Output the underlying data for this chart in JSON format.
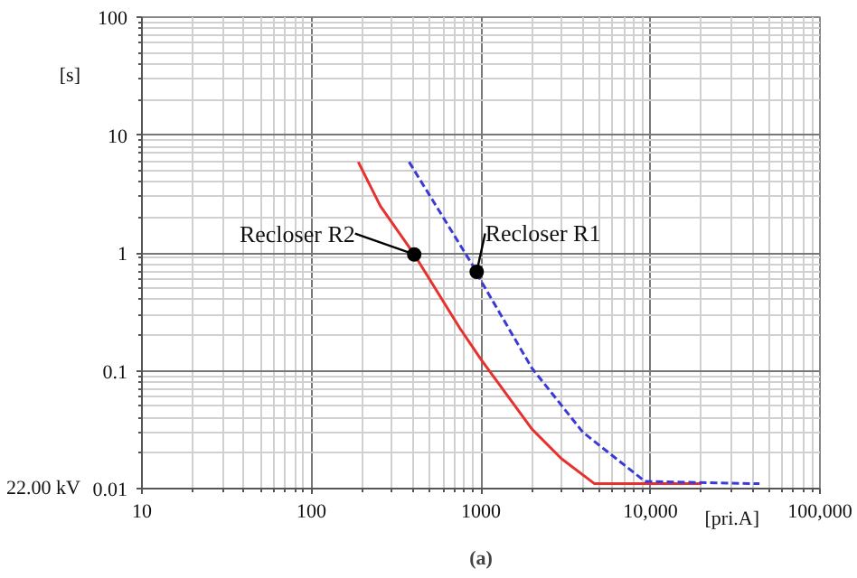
{
  "chart_data": {
    "type": "line",
    "xlabel": "[pri.A]",
    "ylabel": "[s]",
    "log": "xy",
    "grid": true,
    "marker": "none",
    "xlim": [
      10,
      100000
    ],
    "ylim": [
      0.01,
      100
    ],
    "xticks": [
      10,
      100,
      1000,
      {
        "value": 10000,
        "label": "10,000"
      },
      {
        "value": 100000,
        "label": "100,000"
      }
    ],
    "yticks": [
      0.01,
      0.1,
      1,
      10,
      100
    ],
    "series": [
      {
        "color": "#e8312f",
        "line_style": "solid",
        "x": [
          189,
          255,
          404,
          750,
          1000,
          2000,
          2980,
          4680,
          20000
        ],
        "values": [
          5.9,
          2.5,
          0.97,
          0.23,
          0.125,
          0.032,
          0.018,
          0.011,
          0.011
        ]
      },
      {
        "color": "#3a3ad8",
        "line_style": "dashed",
        "x": [
          377,
          944,
          1000,
          2000,
          4000,
          9300,
          44000
        ],
        "values": [
          5.9,
          0.69,
          0.58,
          0.105,
          0.03,
          0.0115,
          0.011
        ]
      }
    ],
    "annotations": [
      {
        "text": "Recloser R2",
        "x": 404,
        "y": 0.97
      },
      {
        "text": "Recloser R1",
        "x": 944,
        "y": 0.69
      },
      "22.00 kV",
      "(a)"
    ]
  }
}
